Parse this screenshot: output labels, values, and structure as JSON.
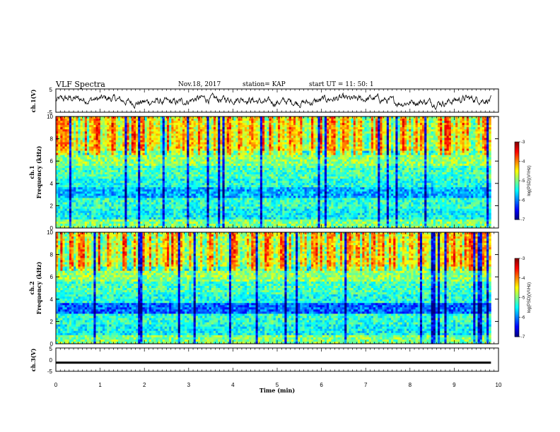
{
  "header": {
    "title": "VLF Spectra",
    "date": "Nov.18, 2017",
    "station": "station= KAP",
    "start_ut": "start  UT  =   11: 50: 1"
  },
  "chart_data": [
    {
      "type": "line",
      "panel": "ch1-waveform",
      "ylabel": "ch.1(V)",
      "ylim": [
        -5,
        5
      ],
      "yticks": [
        "5",
        "-5"
      ],
      "xlim": [
        0,
        10
      ]
    },
    {
      "type": "heatmap",
      "panel": "ch1-spectrogram",
      "ylabel_top": "ch.1",
      "ylabel": "Frequency  (kHz)",
      "ylim": [
        0,
        10
      ],
      "yticks": [
        "0",
        "2",
        "4",
        "6",
        "8",
        "10"
      ],
      "xlim": [
        0,
        10
      ],
      "data_end_min": 9.83,
      "colorbar": {
        "label": "log(PSD)(V²/Hz)",
        "range": [
          -7,
          -3
        ],
        "ticks": [
          "-3",
          "-4",
          "-5",
          "-6",
          "-7"
        ]
      }
    },
    {
      "type": "heatmap",
      "panel": "ch2-spectrogram",
      "ylabel_top": "ch.2",
      "ylabel": "Frequency  (kHz)",
      "ylim": [
        0,
        10
      ],
      "yticks": [
        "0",
        "2",
        "4",
        "6",
        "8",
        "10"
      ],
      "xlim": [
        0,
        10
      ],
      "data_end_min": 9.83,
      "colorbar": {
        "label": "log(PSD)(V²/Hz)",
        "range": [
          -7,
          -3
        ],
        "ticks": [
          "-3",
          "-4",
          "-5",
          "-6",
          "-7"
        ]
      }
    },
    {
      "type": "line",
      "panel": "ch3-waveform",
      "ylabel": "ch.3(V)",
      "ylim": [
        -5,
        5
      ],
      "yticks": [
        "5",
        "0",
        "-5"
      ],
      "xlim": [
        0,
        10
      ],
      "level_v": -1.3,
      "xlabel": "Time  (min)",
      "xticks": [
        "0",
        "1",
        "2",
        "3",
        "4",
        "5",
        "6",
        "7",
        "8",
        "9",
        "10"
      ]
    }
  ],
  "colors": {
    "axis": "#000000",
    "spectrum_low": "#00008f",
    "spectrum_high": "#ff0000"
  }
}
